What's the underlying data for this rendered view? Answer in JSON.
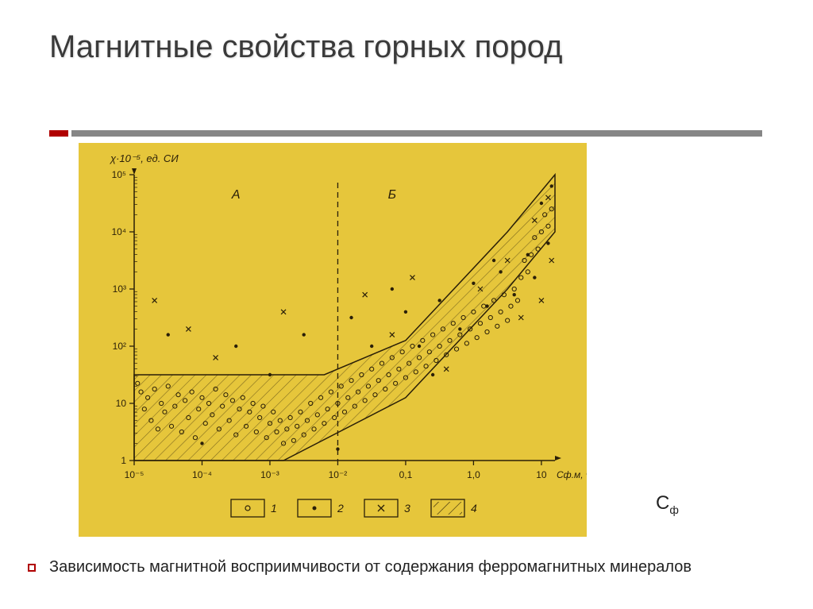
{
  "title": "Магнитные свойства горных пород",
  "caption": "Зависимость магнитной восприимчивости от содержания ферромагнитных минералов",
  "side_label": "С",
  "side_label_sub": "ф",
  "chart": {
    "type": "scatter",
    "bg_color": "#e6c63b",
    "ink_color": "#2a1f08",
    "hatch_color": "#2a1f08",
    "y_label": "χ·10⁻⁵, ед. СИ",
    "x_label_end": "Сф.м, %",
    "x_scale": "log",
    "y_scale": "log",
    "x_ticks": [
      "10⁻⁵",
      "10⁻⁴",
      "10⁻³",
      "10⁻²",
      "0,1",
      "1,0",
      "10"
    ],
    "y_ticks": [
      "1",
      "10",
      "10²",
      "10³",
      "10⁴",
      "10⁵"
    ],
    "x_range_log10": [
      -5,
      1.2
    ],
    "y_range_log10": [
      0,
      5
    ],
    "region_A_label": "А",
    "region_B_label": "Б",
    "divider_x_log10": -2,
    "hatch_band_lower_log10": [
      [
        -5,
        0
      ],
      [
        -2.8,
        0
      ],
      [
        -1,
        1.1
      ],
      [
        0.5,
        3.0
      ],
      [
        1.2,
        4.0
      ]
    ],
    "hatch_band_upper_log10": [
      [
        -5,
        1.5
      ],
      [
        -2.2,
        1.5
      ],
      [
        -1,
        2.1
      ],
      [
        0.5,
        4.0
      ],
      [
        1.2,
        5.0
      ]
    ],
    "series": [
      {
        "name": "1",
        "marker": "o",
        "filled": false,
        "points": [
          [
            -4.95,
            1.35
          ],
          [
            -4.9,
            1.2
          ],
          [
            -4.85,
            0.9
          ],
          [
            -4.8,
            1.1
          ],
          [
            -4.75,
            0.7
          ],
          [
            -4.7,
            1.25
          ],
          [
            -4.65,
            0.55
          ],
          [
            -4.6,
            1.0
          ],
          [
            -4.55,
            0.85
          ],
          [
            -4.5,
            1.3
          ],
          [
            -4.45,
            0.6
          ],
          [
            -4.4,
            0.95
          ],
          [
            -4.35,
            1.15
          ],
          [
            -4.3,
            0.5
          ],
          [
            -4.25,
            1.05
          ],
          [
            -4.2,
            0.75
          ],
          [
            -4.15,
            1.2
          ],
          [
            -4.1,
            0.4
          ],
          [
            -4.05,
            0.9
          ],
          [
            -4.0,
            1.1
          ],
          [
            -3.95,
            0.65
          ],
          [
            -3.9,
            1.0
          ],
          [
            -3.85,
            0.8
          ],
          [
            -3.8,
            1.25
          ],
          [
            -3.75,
            0.55
          ],
          [
            -3.7,
            0.95
          ],
          [
            -3.65,
            1.15
          ],
          [
            -3.6,
            0.7
          ],
          [
            -3.55,
            1.05
          ],
          [
            -3.5,
            0.45
          ],
          [
            -3.45,
            0.9
          ],
          [
            -3.4,
            1.1
          ],
          [
            -3.35,
            0.6
          ],
          [
            -3.3,
            0.85
          ],
          [
            -3.25,
            1.0
          ],
          [
            -3.2,
            0.5
          ],
          [
            -3.15,
            0.75
          ],
          [
            -3.1,
            0.95
          ],
          [
            -3.05,
            0.4
          ],
          [
            -3.0,
            0.65
          ],
          [
            -2.95,
            0.85
          ],
          [
            -2.9,
            0.5
          ],
          [
            -2.85,
            0.7
          ],
          [
            -2.8,
            0.3
          ],
          [
            -2.75,
            0.55
          ],
          [
            -2.7,
            0.75
          ],
          [
            -2.65,
            0.35
          ],
          [
            -2.6,
            0.6
          ],
          [
            -2.55,
            0.85
          ],
          [
            -2.5,
            0.45
          ],
          [
            -2.45,
            0.7
          ],
          [
            -2.4,
            1.0
          ],
          [
            -2.35,
            0.55
          ],
          [
            -2.3,
            0.8
          ],
          [
            -2.25,
            1.1
          ],
          [
            -2.2,
            0.65
          ],
          [
            -2.15,
            0.9
          ],
          [
            -2.1,
            1.2
          ],
          [
            -2.05,
            0.75
          ],
          [
            -2.0,
            1.0
          ],
          [
            -1.95,
            1.3
          ],
          [
            -1.9,
            0.85
          ],
          [
            -1.85,
            1.1
          ],
          [
            -1.8,
            1.4
          ],
          [
            -1.75,
            0.95
          ],
          [
            -1.7,
            1.2
          ],
          [
            -1.65,
            1.5
          ],
          [
            -1.6,
            1.05
          ],
          [
            -1.55,
            1.3
          ],
          [
            -1.5,
            1.6
          ],
          [
            -1.45,
            1.15
          ],
          [
            -1.4,
            1.4
          ],
          [
            -1.35,
            1.7
          ],
          [
            -1.3,
            1.25
          ],
          [
            -1.25,
            1.5
          ],
          [
            -1.2,
            1.8
          ],
          [
            -1.15,
            1.35
          ],
          [
            -1.1,
            1.6
          ],
          [
            -1.05,
            1.9
          ],
          [
            -1.0,
            1.45
          ],
          [
            -0.95,
            1.7
          ],
          [
            -0.9,
            2.0
          ],
          [
            -0.85,
            1.55
          ],
          [
            -0.8,
            1.8
          ],
          [
            -0.75,
            2.1
          ],
          [
            -0.7,
            1.65
          ],
          [
            -0.65,
            1.9
          ],
          [
            -0.6,
            2.2
          ],
          [
            -0.55,
            1.75
          ],
          [
            -0.5,
            2.0
          ],
          [
            -0.45,
            2.3
          ],
          [
            -0.4,
            1.85
          ],
          [
            -0.35,
            2.1
          ],
          [
            -0.3,
            2.4
          ],
          [
            -0.25,
            1.95
          ],
          [
            -0.2,
            2.2
          ],
          [
            -0.15,
            2.5
          ],
          [
            -0.1,
            2.05
          ],
          [
            -0.05,
            2.3
          ],
          [
            0.0,
            2.6
          ],
          [
            0.05,
            2.15
          ],
          [
            0.1,
            2.4
          ],
          [
            0.15,
            2.7
          ],
          [
            0.2,
            2.25
          ],
          [
            0.25,
            2.5
          ],
          [
            0.3,
            2.8
          ],
          [
            0.35,
            2.35
          ],
          [
            0.4,
            2.6
          ],
          [
            0.45,
            2.9
          ],
          [
            0.5,
            2.45
          ],
          [
            0.55,
            2.7
          ],
          [
            0.6,
            3.0
          ],
          [
            0.65,
            2.8
          ],
          [
            0.7,
            3.2
          ],
          [
            0.75,
            3.5
          ],
          [
            0.8,
            3.3
          ],
          [
            0.85,
            3.6
          ],
          [
            0.9,
            3.9
          ],
          [
            0.95,
            3.7
          ],
          [
            1.0,
            4.0
          ],
          [
            1.05,
            4.3
          ],
          [
            1.1,
            4.1
          ],
          [
            1.15,
            4.4
          ]
        ]
      },
      {
        "name": "2",
        "marker": "dot",
        "filled": true,
        "points": [
          [
            -4.5,
            2.2
          ],
          [
            -4.0,
            0.3
          ],
          [
            -3.5,
            2.0
          ],
          [
            -3.0,
            1.5
          ],
          [
            -2.5,
            2.2
          ],
          [
            -2.0,
            0.2
          ],
          [
            -1.8,
            2.5
          ],
          [
            -1.5,
            2.0
          ],
          [
            -1.0,
            2.6
          ],
          [
            -0.8,
            2.0
          ],
          [
            -0.5,
            2.8
          ],
          [
            -0.2,
            2.3
          ],
          [
            0.0,
            3.1
          ],
          [
            0.2,
            2.7
          ],
          [
            0.4,
            3.3
          ],
          [
            0.6,
            2.9
          ],
          [
            0.8,
            3.6
          ],
          [
            0.9,
            3.2
          ],
          [
            1.0,
            4.5
          ],
          [
            1.1,
            3.8
          ],
          [
            1.15,
            4.8
          ],
          [
            -1.2,
            3.0
          ],
          [
            -0.6,
            1.5
          ],
          [
            0.3,
            3.5
          ]
        ]
      },
      {
        "name": "3",
        "marker": "x",
        "filled": false,
        "points": [
          [
            -4.7,
            2.8
          ],
          [
            -4.2,
            2.3
          ],
          [
            -3.8,
            1.8
          ],
          [
            -2.8,
            2.6
          ],
          [
            -1.6,
            2.9
          ],
          [
            -1.2,
            2.2
          ],
          [
            -0.9,
            3.2
          ],
          [
            -0.4,
            1.6
          ],
          [
            0.1,
            3.0
          ],
          [
            0.5,
            3.5
          ],
          [
            0.7,
            2.5
          ],
          [
            0.9,
            4.2
          ],
          [
            1.0,
            2.8
          ],
          [
            1.1,
            4.6
          ],
          [
            1.15,
            3.5
          ]
        ]
      }
    ],
    "legend": {
      "items": [
        {
          "label": "1",
          "marker": "o"
        },
        {
          "label": "2",
          "marker": "dot"
        },
        {
          "label": "3",
          "marker": "x"
        },
        {
          "label": "4",
          "marker": "hatch"
        }
      ]
    }
  }
}
